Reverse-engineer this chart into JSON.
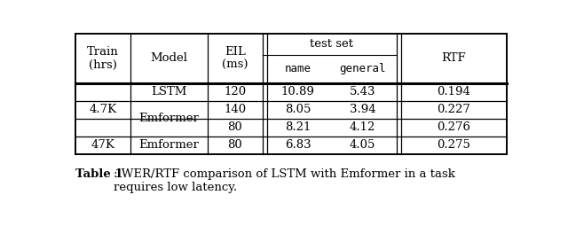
{
  "caption_bold": "Table 1",
  "caption_colon": ":",
  "caption_normal": " WER/RTF comparison of LSTM with Emformer in a task\nrequires low latency.",
  "rows": [
    {
      "train": "4.7K",
      "model": "LSTM",
      "eil": "120",
      "name": "10.89",
      "general": "5.43",
      "rtf": "0.194"
    },
    {
      "train": "",
      "model": "Emformer",
      "eil": "140",
      "name": "8.05",
      "general": "3.94",
      "rtf": "0.227"
    },
    {
      "train": "",
      "model": "",
      "eil": "80",
      "name": "8.21",
      "general": "4.12",
      "rtf": "0.276"
    },
    {
      "train": "47K",
      "model": "Emformer",
      "eil": "80",
      "name": "6.83",
      "general": "4.05",
      "rtf": "0.275"
    }
  ],
  "background_color": "#ffffff",
  "font_size": 9.5,
  "caption_font_size": 9.5,
  "monospace_font_size": 9.0
}
